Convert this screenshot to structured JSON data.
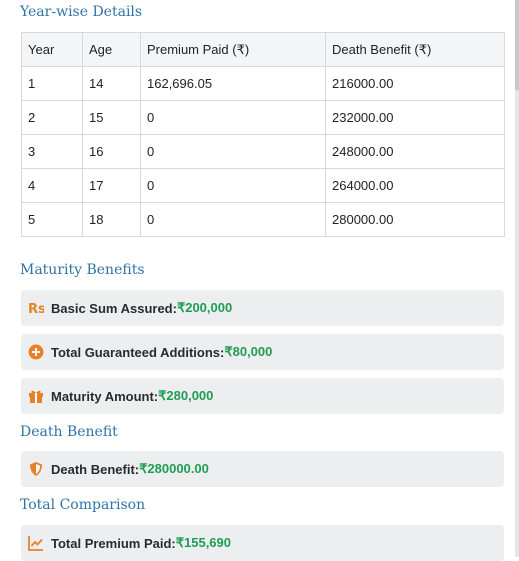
{
  "yearwise": {
    "title": "Year-wise Details",
    "columns": [
      "Year",
      "Age",
      "Premium Paid (₹)",
      "Death Benefit (₹)"
    ],
    "rows": [
      [
        "1",
        "14",
        "162,696.05",
        "216000.00"
      ],
      [
        "2",
        "15",
        "0",
        "232000.00"
      ],
      [
        "3",
        "16",
        "0",
        "248000.00"
      ],
      [
        "4",
        "17",
        "0",
        "264000.00"
      ],
      [
        "5",
        "18",
        "0",
        "280000.00"
      ]
    ]
  },
  "maturity": {
    "title": "Maturity Benefits",
    "items": [
      {
        "label": "Basic Sum Assured:",
        "value": "₹200,000",
        "icon": "rupee-icon"
      },
      {
        "label": "Total Guaranteed Additions:",
        "value": "₹80,000",
        "icon": "plus-circle-icon"
      },
      {
        "label": "Maturity Amount:",
        "value": "₹280,000",
        "icon": "gift-icon"
      }
    ]
  },
  "death": {
    "title": "Death Benefit",
    "items": [
      {
        "label": "Death Benefit:",
        "value": "₹280000.00",
        "icon": "shield-icon"
      }
    ]
  },
  "comparison": {
    "title": "Total Comparison",
    "items": [
      {
        "label": "Total Premium Paid:",
        "value": "₹155,690",
        "icon": "chart-line-icon"
      }
    ]
  },
  "colors": {
    "accent": "#2f73a8",
    "value_green": "#1f9d55",
    "icon_orange": "#e8822a"
  }
}
